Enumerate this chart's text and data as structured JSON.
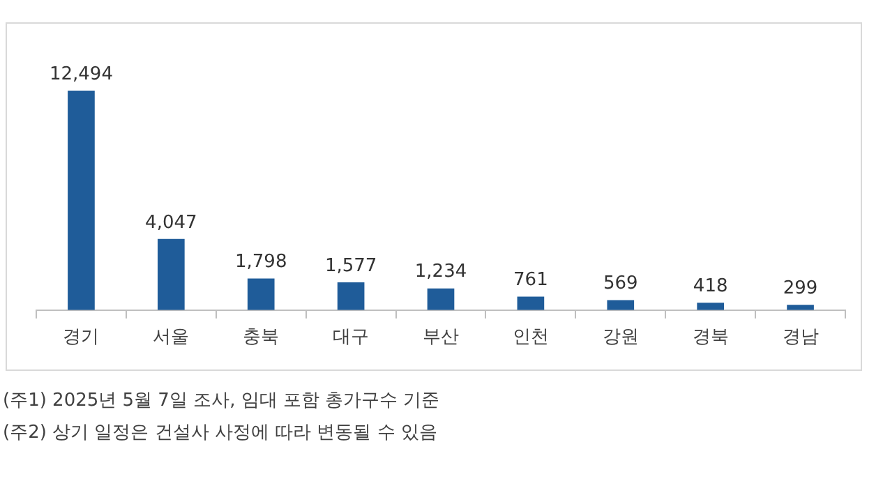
{
  "chart_data": {
    "type": "bar",
    "categories": [
      "경기",
      "서울",
      "충북",
      "대구",
      "부산",
      "인천",
      "강원",
      "경북",
      "경남"
    ],
    "values": [
      12494,
      4047,
      1798,
      1577,
      1234,
      761,
      569,
      418,
      299
    ],
    "color": "#1f5c99",
    "value_labels": [
      "12,494",
      "4,047",
      "1,798",
      "1,577",
      "1,234",
      "761",
      "569",
      "418",
      "299"
    ],
    "annotations": [
      "(주1) 2025년 5월 7일 조사, 임대 포함 총가구수 기준",
      "(주2) 상기 일정은 건설사 사정에 따라 변동될 수 있음"
    ]
  }
}
